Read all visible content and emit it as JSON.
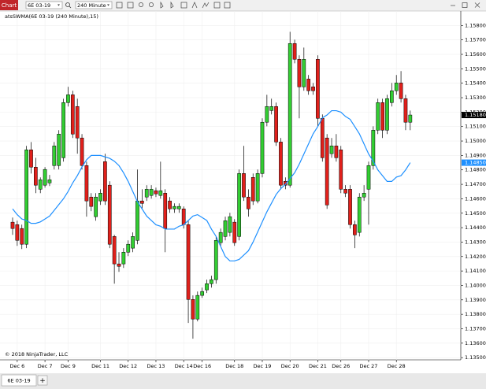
{
  "ui": {
    "window_title": "Chart",
    "instrument": "6E 03-19",
    "interval": "240 Minute",
    "tab": "6E 03-19",
    "add_tab": "+"
  },
  "chart_data": {
    "type": "candlestick",
    "indicator_label": "atsSWMA(6E 03-19 (240 Minute),15)",
    "copyright": "© 2018 NinjaTrader, LLC",
    "up_color": "#32cd32",
    "down_color": "#e0201b",
    "categories": [
      null,
      "Dec 6",
      null,
      null,
      null,
      null,
      null,
      "Dec 7",
      null,
      null,
      null,
      null,
      "Dec 9",
      null,
      null,
      null,
      null,
      null,
      null,
      "Dec 11",
      null,
      null,
      null,
      null,
      null,
      "Dec 12",
      null,
      null,
      null,
      null,
      null,
      "Dec 13",
      null,
      null,
      null,
      null,
      null,
      "Dec 14",
      null,
      null,
      null,
      "Dec 16",
      null,
      null,
      null,
      null,
      null,
      null,
      "Dec 18",
      null,
      null,
      null,
      null,
      null,
      "Dec 19",
      null,
      null,
      null,
      null,
      null,
      "Dec 20",
      null,
      null,
      null,
      null,
      null,
      "Dec 21",
      null,
      null,
      null,
      null,
      "Dec 26",
      null,
      null,
      null,
      null,
      null,
      "Dec 27",
      null,
      null,
      null,
      null,
      null,
      "Dec 28",
      null,
      null,
      null
    ],
    "open": [
      1.14438,
      1.14421,
      1.14394,
      1.14285,
      1.14939,
      1.14819,
      1.14666,
      1.14694,
      1.1471,
      1.1483,
      1.1483,
      1.14884,
      1.15266,
      1.1532,
      1.15239,
      1.15021,
      1.1483,
      1.14612,
      1.14476,
      1.14585,
      1.14857,
      1.14694,
      1.14339,
      1.14149,
      1.14149,
      1.1423,
      1.14258,
      1.14312,
      1.14585,
      1.14612,
      1.14623,
      1.14656,
      1.14623,
      1.14639,
      1.14585,
      1.1453,
      1.1453,
      1.1453,
      1.14421,
      1.13903,
      1.13767,
      1.13931,
      1.13969,
      1.14012,
      1.1404,
      1.14296,
      1.14339,
      1.14367,
      1.14438,
      1.14339,
      1.14775,
      1.14612,
      1.14748,
      1.14585,
      1.14775,
      1.1513,
      1.15211,
      1.15239,
      1.14993,
      1.14721,
      1.14694,
      1.15675,
      1.15566,
      1.15375,
      1.15429,
      1.15375,
      1.15566,
      1.15157,
      1.15021,
      1.14912,
      1.14966,
      1.14939,
      1.14666,
      1.14666,
      1.14421,
      1.14367,
      1.14612,
      1.14666,
      1.1483,
      1.15075,
      1.15266,
      1.15075,
      1.15266,
      1.15348,
      1.15402,
      1.15293,
      1.1513
    ],
    "high": [
      1.1447,
      1.14448,
      1.14421,
      1.14966,
      1.14993,
      1.14884,
      1.14748,
      1.14819,
      1.14765,
      1.14993,
      1.15075,
      1.15293,
      1.15375,
      1.15348,
      1.15293,
      1.15048,
      1.14857,
      1.14639,
      1.14639,
      1.14666,
      1.14912,
      1.14721,
      1.1435,
      1.1423,
      1.14258,
      1.14312,
      1.14367,
      1.14803,
      1.14666,
      1.14694,
      1.14694,
      1.14677,
      1.14857,
      1.14666,
      1.14612,
      1.14568,
      1.14568,
      1.14547,
      1.14448,
      1.13931,
      1.13958,
      1.13985,
      1.1404,
      1.14067,
      1.14339,
      1.14394,
      1.14476,
      1.14503,
      1.14459,
      1.14803,
      1.14966,
      1.14666,
      1.14775,
      1.14803,
      1.15157,
      1.1532,
      1.15293,
      1.15266,
      1.15021,
      1.14748,
      1.15756,
      1.15702,
      1.15593,
      1.15647,
      1.15457,
      1.15402,
      1.15593,
      1.15184,
      1.15048,
      1.15021,
      1.15048,
      1.14966,
      1.14694,
      1.14694,
      1.14448,
      1.14639,
      1.14694,
      1.14857,
      1.15102,
      1.15293,
      1.15293,
      1.1532,
      1.15402,
      1.15457,
      1.15484,
      1.1532,
      1.15211
    ],
    "low": [
      1.1435,
      1.14274,
      1.14252,
      1.14258,
      1.14775,
      1.14639,
      1.14639,
      1.14677,
      1.14688,
      1.14803,
      1.14803,
      1.14857,
      1.15239,
      1.15021,
      1.14912,
      1.14803,
      1.14476,
      1.14514,
      1.14448,
      1.14557,
      1.14557,
      1.14258,
      1.14012,
      1.14094,
      1.14121,
      1.14203,
      1.1423,
      1.14285,
      1.1453,
      1.14585,
      1.14601,
      1.14612,
      1.14601,
      1.1423,
      1.14503,
      1.14503,
      1.14503,
      1.14394,
      1.1374,
      1.13631,
      1.13751,
      1.13914,
      1.13947,
      1.13985,
      1.14012,
      1.14274,
      1.14312,
      1.14339,
      1.14274,
      1.14312,
      1.14585,
      1.14476,
      1.14557,
      1.14568,
      1.14748,
      1.15102,
      1.15184,
      1.14966,
      1.14666,
      1.14666,
      1.14677,
      1.15538,
      1.15157,
      1.15348,
      1.1532,
      1.1532,
      1.15102,
      1.14857,
      1.1453,
      1.14884,
      1.14857,
      1.14639,
      1.14612,
      1.14394,
      1.14258,
      1.14339,
      1.14585,
      1.14421,
      1.14803,
      1.15048,
      1.15021,
      1.15048,
      1.15239,
      1.1532,
      1.15266,
      1.15075,
      1.15075
    ],
    "close": [
      1.14394,
      1.14312,
      1.14285,
      1.14939,
      1.14819,
      1.14694,
      1.14732,
      1.14803,
      1.14732,
      1.14966,
      1.15048,
      1.15266,
      1.1532,
      1.15048,
      1.15021,
      1.1483,
      1.14585,
      1.14547,
      1.14612,
      1.14639,
      1.14585,
      1.14285,
      1.14149,
      1.14132,
      1.1423,
      1.14285,
      1.14339,
      1.14585,
      1.14568,
      1.14666,
      1.14666,
      1.14634,
      1.14656,
      1.14394,
      1.1453,
      1.14547,
      1.14547,
      1.14421,
      1.13903,
      1.13767,
      1.13931,
      1.13958,
      1.14012,
      1.1404,
      1.14312,
      1.14367,
      1.14448,
      1.14476,
      1.14296,
      1.14775,
      1.14612,
      1.1453,
      1.14585,
      1.14775,
      1.1513,
      1.15239,
      1.15239,
      1.14993,
      1.14694,
      1.14694,
      1.15675,
      1.15566,
      1.15375,
      1.15566,
      1.15348,
      1.15348,
      1.15157,
      1.14884,
      1.14557,
      1.14966,
      1.14884,
      1.14666,
      1.14639,
      1.14421,
      1.1435,
      1.14612,
      1.14639,
      1.1483,
      1.15075,
      1.15266,
      1.15075,
      1.15293,
      1.15348,
      1.15402,
      1.15293,
      1.1513,
      1.1518
    ],
    "line": {
      "color": "#1e90ff",
      "values": [
        1.1453,
        1.1449,
        1.1446,
        1.1445,
        1.1443,
        1.1443,
        1.1444,
        1.1446,
        1.1448,
        1.1452,
        1.1456,
        1.146,
        1.1465,
        1.1471,
        1.1476,
        1.1482,
        1.1487,
        1.149,
        1.149,
        1.149,
        1.1489,
        1.1488,
        1.1486,
        1.1483,
        1.1478,
        1.1472,
        1.1465,
        1.1458,
        1.1453,
        1.1448,
        1.1445,
        1.1442,
        1.1441,
        1.1439,
        1.1439,
        1.1439,
        1.1441,
        1.1442,
        1.1445,
        1.1448,
        1.1449,
        1.1447,
        1.1445,
        1.1439,
        1.1434,
        1.1427,
        1.142,
        1.1417,
        1.1417,
        1.1418,
        1.1421,
        1.1424,
        1.143,
        1.1437,
        1.1444,
        1.1451,
        1.1457,
        1.1463,
        1.1467,
        1.147,
        1.1474,
        1.1478,
        1.1484,
        1.1491,
        1.1498,
        1.1505,
        1.151,
        1.1516,
        1.1518,
        1.1521,
        1.1521,
        1.152,
        1.1517,
        1.1515,
        1.151,
        1.1505,
        1.1498,
        1.1491,
        1.1486,
        1.148,
        1.1476,
        1.1472,
        1.1472,
        1.1475,
        1.1476,
        1.148,
        1.1485
      ]
    },
    "price_markers": [
      {
        "value": 1.1518,
        "label": "1.15180",
        "color": "#000000"
      },
      {
        "value": 1.1485,
        "label": "1.14850",
        "color": "#1e90ff"
      }
    ],
    "ylim": [
      1.1349,
      1.159
    ],
    "yticks": [
      {
        "value": 1.135,
        "label": "1.13500"
      },
      {
        "value": 1.136,
        "label": "1.13600"
      },
      {
        "value": 1.137,
        "label": "1.13700"
      },
      {
        "value": 1.138,
        "label": "1.13800"
      },
      {
        "value": 1.139,
        "label": "1.13900"
      },
      {
        "value": 1.14,
        "label": "1.14000"
      },
      {
        "value": 1.141,
        "label": "1.14100"
      },
      {
        "value": 1.142,
        "label": "1.14200"
      },
      {
        "value": 1.143,
        "label": "1.14300"
      },
      {
        "value": 1.144,
        "label": "1.14400"
      },
      {
        "value": 1.145,
        "label": "1.14500"
      },
      {
        "value": 1.146,
        "label": "1.14600"
      },
      {
        "value": 1.147,
        "label": "1.14700"
      },
      {
        "value": 1.148,
        "label": "1.14800"
      },
      {
        "value": 1.149,
        "label": "1.14900"
      },
      {
        "value": 1.15,
        "label": "1.15000"
      },
      {
        "value": 1.151,
        "label": "1.15100"
      },
      {
        "value": 1.152,
        "label": "1.15200"
      },
      {
        "value": 1.153,
        "label": "1.15300"
      },
      {
        "value": 1.154,
        "label": "1.15400"
      },
      {
        "value": 1.155,
        "label": "1.15500"
      },
      {
        "value": 1.156,
        "label": "1.15600"
      },
      {
        "value": 1.157,
        "label": "1.15700"
      },
      {
        "value": 1.158,
        "label": "1.15800"
      }
    ],
    "grid": true
  }
}
